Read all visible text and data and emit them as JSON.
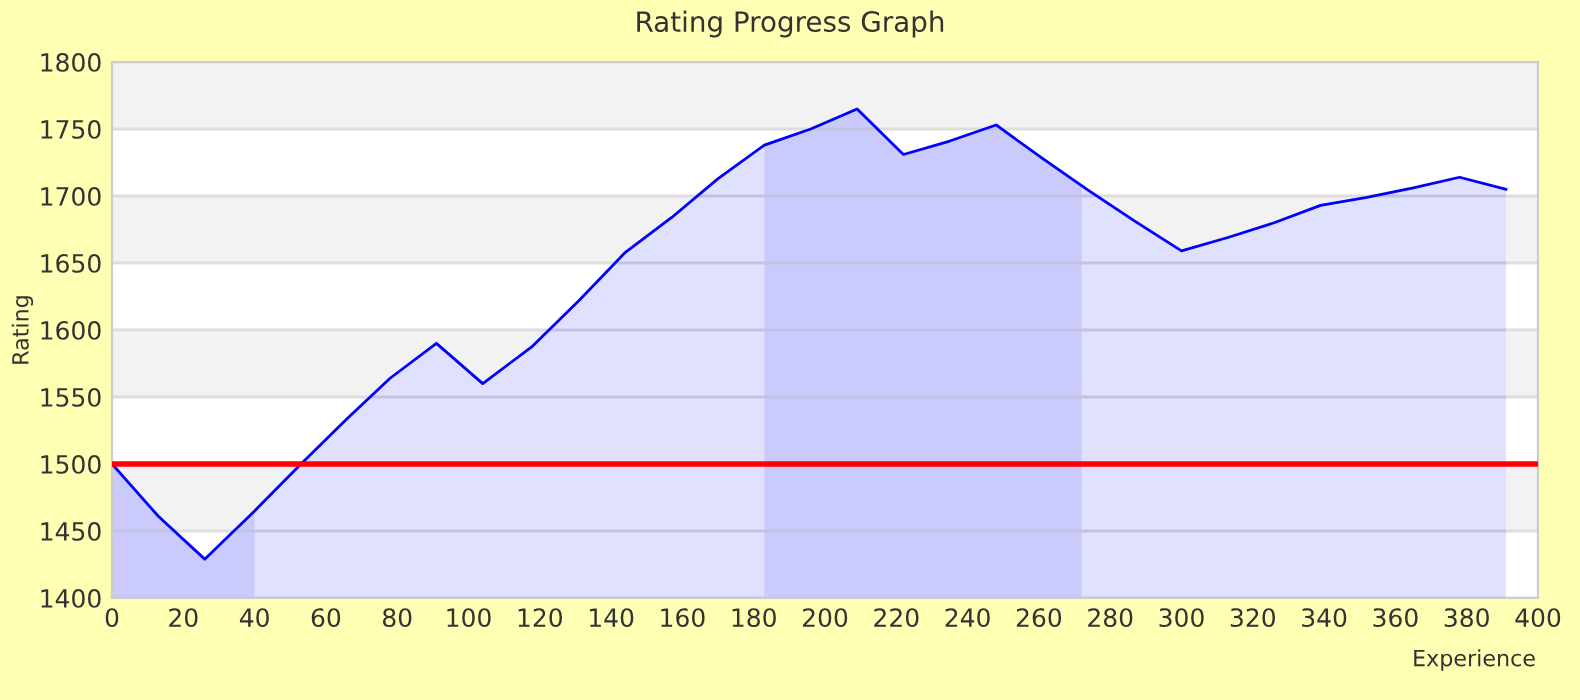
{
  "chart_data": {
    "type": "area",
    "title": "Rating Progress Graph",
    "xlabel": "Experience",
    "ylabel": "Rating",
    "series": [
      {
        "color": "#0000ff",
        "x": [
          0,
          13,
          26,
          40,
          53,
          66,
          78,
          91,
          104,
          118,
          131,
          144,
          157,
          170,
          183,
          196,
          209,
          222,
          235,
          248,
          261,
          274,
          287,
          300,
          313,
          326,
          339,
          352,
          365,
          378,
          391
        ],
        "values": [
          1500,
          1461,
          1429,
          1465,
          1500,
          1534,
          1564,
          1590,
          1560,
          1588,
          1622,
          1658,
          1684,
          1713,
          1738,
          1750,
          1765,
          1731,
          1741,
          1753,
          1728,
          1704,
          1681,
          1659,
          1669,
          1680,
          1693,
          1699,
          1706,
          1714,
          1705
        ]
      }
    ],
    "bands": [
      {
        "axis": "x",
        "from": 0,
        "to": 40,
        "color": "#cdcdfa"
      },
      {
        "axis": "x",
        "from": 183,
        "to": 272,
        "color": "#cdcdfa"
      }
    ],
    "ref_lines": [
      {
        "axis": "y",
        "value": 1500,
        "color": "#ff0000"
      }
    ],
    "xlim": [
      0,
      400
    ],
    "xticks": [
      0,
      20,
      40,
      60,
      80,
      100,
      120,
      140,
      160,
      180,
      200,
      220,
      240,
      260,
      280,
      300,
      320,
      340,
      360,
      380,
      400
    ],
    "ylim": [
      1400,
      1800
    ],
    "yticks": [
      1400,
      1450,
      1500,
      1550,
      1600,
      1650,
      1700,
      1750,
      1800
    ],
    "grid": "y",
    "legend": false
  }
}
